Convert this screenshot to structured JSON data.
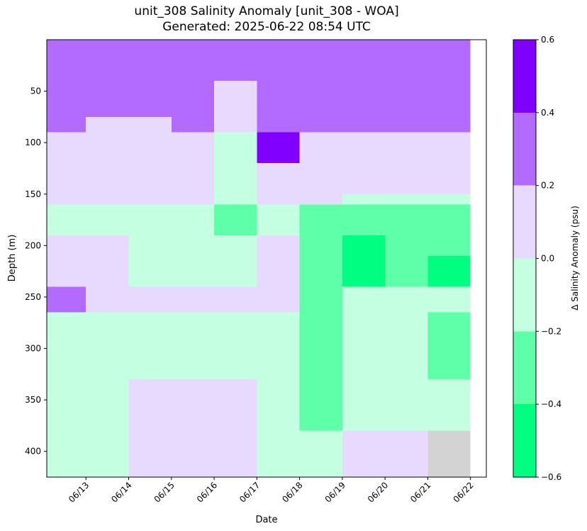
{
  "chart_data": {
    "type": "heatmap",
    "title": "unit_308 Salinity Anomaly [unit_308 - WOA]",
    "subtitle": "Generated: 2025-06-22 08:54 UTC",
    "xlabel": "Date",
    "ylabel": "Depth (m)",
    "y_inverted": true,
    "ylim": [
      425,
      0
    ],
    "y_ticks": [
      50,
      100,
      150,
      200,
      250,
      300,
      350,
      400
    ],
    "x_ticks": [
      "06/13",
      "06/14",
      "06/15",
      "06/16",
      "06/17",
      "06/18",
      "06/19",
      "06/20",
      "06/21",
      "06/22"
    ],
    "colorbar": {
      "label": "Δ Salinity Anomaly (psu)",
      "ticks": [
        "0.6",
        "0.4",
        "0.2",
        "0.0",
        "−0.2",
        "−0.4",
        "−0.6"
      ],
      "bins": [
        {
          "range": [
            -0.6,
            -0.4
          ],
          "color": "#00ff80"
        },
        {
          "range": [
            -0.4,
            -0.2
          ],
          "color": "#5fffaa"
        },
        {
          "range": [
            -0.2,
            0.0
          ],
          "color": "#c5ffe2"
        },
        {
          "range": [
            0.0,
            0.2
          ],
          "color": "#e8d9ff"
        },
        {
          "range": [
            0.2,
            0.4
          ],
          "color": "#b36bff"
        },
        {
          "range": [
            0.4,
            0.6
          ],
          "color": "#8000ff"
        }
      ]
    },
    "missing_color": "#d3d3d3",
    "grid": false,
    "cells": [
      [
        "2025-06-12",
        "2025-06-22",
        0,
        10,
        0.3
      ],
      [
        "2025-06-12",
        "2025-06-22",
        10,
        75,
        0.3
      ],
      [
        "2025-06-12",
        "2025-06-13",
        75,
        90,
        0.3
      ],
      [
        "2025-06-13",
        "2025-06-15",
        75,
        90,
        0.1
      ],
      [
        "2025-06-15",
        "2025-06-16",
        75,
        90,
        0.3
      ],
      [
        "2025-06-16",
        "2025-06-17",
        75,
        90,
        0.1
      ],
      [
        "2025-06-17",
        "2025-06-22",
        75,
        90,
        0.3
      ],
      [
        "2025-06-12",
        "2025-06-22",
        90,
        160,
        0.1
      ],
      [
        "2025-06-16",
        "2025-06-17",
        40,
        80,
        0.1
      ],
      [
        "2025-06-16",
        "2025-06-17",
        90,
        160,
        -0.1
      ],
      [
        "2025-06-19",
        "2025-06-22",
        150,
        175,
        -0.1
      ],
      [
        "2025-06-12",
        "2025-06-22",
        160,
        190,
        -0.1
      ],
      [
        "2025-06-16",
        "2025-06-17",
        160,
        190,
        -0.3
      ],
      [
        "2025-06-18",
        "2025-06-22",
        160,
        190,
        -0.3
      ],
      [
        "2025-06-12",
        "2025-06-22",
        190,
        240,
        0.1
      ],
      [
        "2025-06-14",
        "2025-06-17",
        190,
        240,
        -0.1
      ],
      [
        "2025-06-18",
        "2025-06-22",
        190,
        240,
        -0.3
      ],
      [
        "2025-06-19",
        "2025-06-20",
        190,
        240,
        -0.5
      ],
      [
        "2025-06-21",
        "2025-06-22",
        210,
        240,
        -0.5
      ],
      [
        "2025-06-12",
        "2025-06-13",
        240,
        265,
        0.3
      ],
      [
        "2025-06-13",
        "2025-06-17",
        240,
        265,
        0.1
      ],
      [
        "2025-06-17",
        "2025-06-18",
        240,
        265,
        0.1
      ],
      [
        "2025-06-18",
        "2025-06-19",
        240,
        265,
        -0.3
      ],
      [
        "2025-06-19",
        "2025-06-22",
        240,
        265,
        -0.1
      ],
      [
        "2025-06-12",
        "2025-06-22",
        265,
        380,
        -0.1
      ],
      [
        "2025-06-18",
        "2025-06-19",
        265,
        380,
        -0.3
      ],
      [
        "2025-06-21",
        "2025-06-22",
        265,
        330,
        -0.3
      ],
      [
        "2025-06-12",
        "2025-06-22",
        380,
        425,
        -0.1
      ],
      [
        "2025-06-14",
        "2025-06-17",
        330,
        425,
        0.1
      ],
      [
        "2025-06-19",
        "2025-06-21",
        380,
        425,
        0.1
      ],
      [
        "2025-06-17",
        "2025-06-18",
        90,
        120,
        0.5
      ],
      [
        "2025-06-21",
        "2025-06-22",
        380,
        425,
        null
      ]
    ]
  }
}
